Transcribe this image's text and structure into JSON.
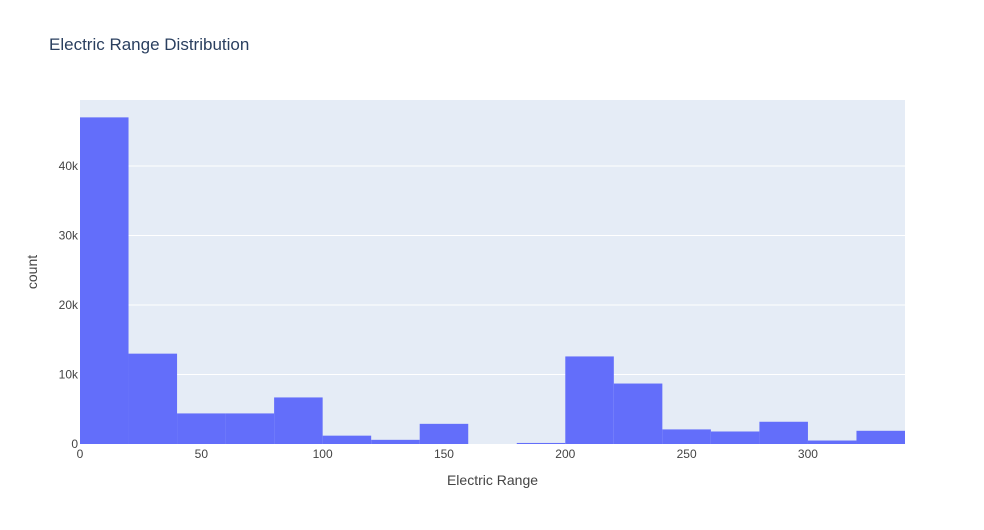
{
  "chart_data": {
    "type": "bar",
    "title": "Electric Range Distribution",
    "xlabel": "Electric Range",
    "ylabel": "count",
    "bin_edges": [
      0,
      20,
      40,
      60,
      80,
      100,
      120,
      140,
      160,
      180,
      200,
      220,
      240,
      260,
      280,
      300,
      320,
      340
    ],
    "values": [
      47000,
      13000,
      4400,
      4400,
      6700,
      1200,
      600,
      2900,
      0,
      150,
      12600,
      8700,
      2100,
      1800,
      3200,
      500,
      1900
    ],
    "xlim": [
      0,
      340
    ],
    "ylim": [
      0,
      49500
    ],
    "x_ticks": [
      0,
      50,
      100,
      150,
      200,
      250,
      300
    ],
    "y_ticks": [
      0,
      10000,
      20000,
      30000,
      40000
    ],
    "x_tick_labels": [
      "0",
      "50",
      "100",
      "150",
      "200",
      "250",
      "300"
    ],
    "y_tick_labels": [
      "0",
      "10k",
      "20k",
      "30k",
      "40k"
    ],
    "grid": true,
    "colors": {
      "bar": "#636efa",
      "plot_bg": "#e5ecf6",
      "grid": "#ffffff",
      "text": "#444444",
      "title": "#2a3f5f"
    }
  }
}
